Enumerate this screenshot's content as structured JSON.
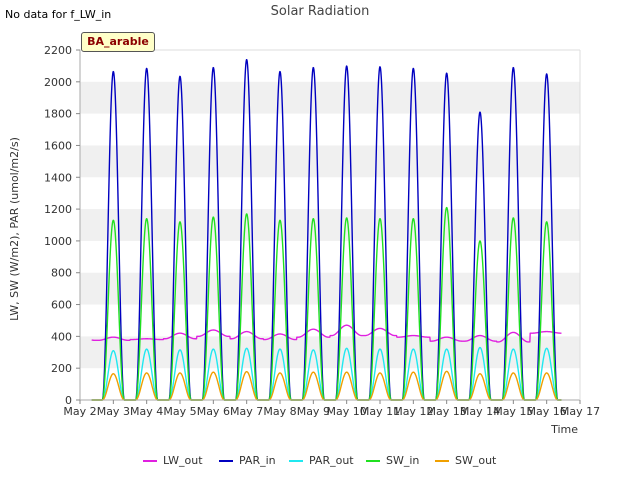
{
  "header": {
    "no_data_note": "No data for f_LW_in",
    "title": "Solar Radiation",
    "site_label": "BA_arable"
  },
  "colors": {
    "LW_out": "#e020e0",
    "PAR_in": "#0000c0",
    "PAR_out": "#20e8f0",
    "SW_in": "#20e020",
    "SW_out": "#f0a000",
    "grid_band": "#f0f0f0"
  },
  "chart_data": {
    "type": "line",
    "title": "Solar Radiation",
    "xlabel": "Time",
    "ylabel": "LW, SW (W/m2), PAR (umol/m2/s)",
    "x_tick_labels": [
      "May 2",
      "May 3",
      "May 4",
      "May 5",
      "May 6",
      "May 7",
      "May 8",
      "May 9",
      "May 10",
      "May 11",
      "May 12",
      "May 13",
      "May 14",
      "May 15",
      "May 16",
      "May 17"
    ],
    "y_tick_labels": [
      "0",
      "200",
      "400",
      "600",
      "800",
      "1000",
      "1200",
      "1400",
      "1600",
      "1800",
      "2000",
      "2200"
    ],
    "xlim_days": [
      2,
      17
    ],
    "ylim": [
      0,
      2200
    ],
    "data_start_day": 2.35,
    "data_end_day": 16.45,
    "days": [
      3,
      4,
      5,
      6,
      7,
      8,
      9,
      10,
      11,
      12,
      13,
      14,
      15,
      16
    ],
    "series": [
      {
        "name": "LW_out",
        "kind": "continuous",
        "values_night": [
          375,
          380,
          385,
          400,
          385,
          380,
          395,
          405,
          405,
          395,
          370,
          370,
          365,
          420
        ],
        "values_day": [
          395,
          385,
          420,
          440,
          430,
          415,
          445,
          470,
          450,
          405,
          395,
          405,
          425,
          430
        ]
      },
      {
        "name": "PAR_in",
        "kind": "diurnal",
        "peaks": [
          2065,
          2085,
          2035,
          2090,
          2140,
          2065,
          2090,
          2100,
          2095,
          2085,
          2055,
          1810,
          2090,
          2050
        ]
      },
      {
        "name": "PAR_out",
        "kind": "diurnal",
        "peaks": [
          310,
          320,
          315,
          320,
          325,
          320,
          315,
          325,
          320,
          320,
          320,
          330,
          320,
          325
        ]
      },
      {
        "name": "SW_in",
        "kind": "diurnal",
        "peaks": [
          1130,
          1140,
          1120,
          1150,
          1170,
          1130,
          1140,
          1145,
          1140,
          1140,
          1210,
          1000,
          1145,
          1120
        ]
      },
      {
        "name": "SW_out",
        "kind": "diurnal",
        "peaks": [
          165,
          170,
          170,
          175,
          178,
          170,
          175,
          175,
          170,
          175,
          180,
          165,
          170,
          170
        ]
      }
    ],
    "legend_position": "bottom",
    "grid": "horizontal alternating bands"
  },
  "legend": {
    "items": [
      "LW_out",
      "PAR_in",
      "PAR_out",
      "SW_in",
      "SW_out"
    ]
  }
}
